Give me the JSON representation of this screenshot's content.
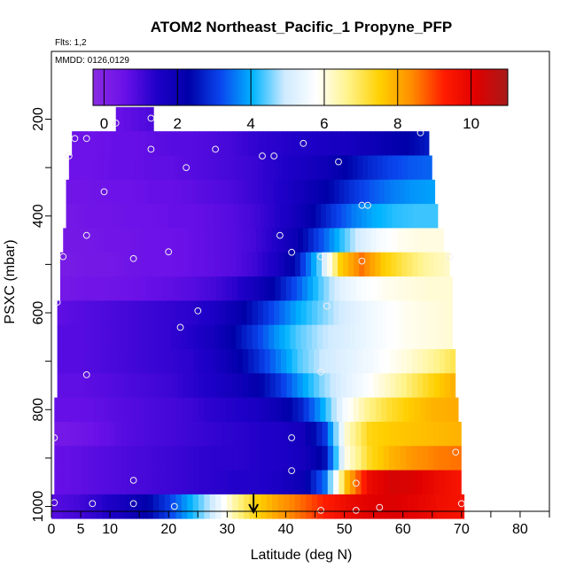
{
  "chart_data": {
    "type": "heatmap",
    "title": "ATOM2 Northeast_Pacific_1 Propyne_PFP",
    "subtitle_flights": "Flts: 1,2",
    "subtitle_dates": "MMDD: 0126,0129",
    "xlabel": "Latitude (deg N)",
    "ylabel": "PSXC (mbar)",
    "xlim": [
      0,
      85
    ],
    "ylim": [
      1010,
      60
    ],
    "x_ticks": [
      0,
      5,
      10,
      20,
      30,
      40,
      50,
      60,
      70,
      80
    ],
    "x_minor_ticks": [
      15,
      25,
      35,
      45,
      55,
      65,
      75,
      85
    ],
    "y_ticks": [
      200,
      400,
      600,
      800,
      1000
    ],
    "y_minor_ticks": [
      300,
      500,
      700,
      900
    ],
    "colorbar": {
      "range": [
        -0.3,
        11
      ],
      "ticks": [
        0,
        2,
        4,
        6,
        8,
        10
      ],
      "gradient": [
        "#8a2be2",
        "#6a10e8",
        "#1f00c8",
        "#0000a8",
        "#0a46ee",
        "#00b4ff",
        "#cfeaff",
        "#ffffff",
        "#fff38a",
        "#ffd000",
        "#ff8c00",
        "#ff1c00",
        "#e00000",
        "#a81a1a"
      ]
    },
    "levels": [
      {
        "p": 200,
        "x0": 11,
        "x1": 17.5,
        "v": [
          0.6,
          0.9
        ]
      },
      {
        "p": 250,
        "x0": 3.5,
        "x1": 64.5,
        "v": [
          0.5,
          0.5,
          0.6,
          0.6,
          0.7,
          0.8,
          0.8,
          0.9,
          1.0,
          1.2,
          1.3,
          1.4,
          1.5,
          1.6,
          1.7,
          1.9,
          2.1,
          2.3,
          2.6
        ]
      },
      {
        "p": 300,
        "x0": 3.0,
        "x1": 65.0,
        "v": [
          0.5,
          0.5,
          0.6,
          0.6,
          0.7,
          0.7,
          0.8,
          0.9,
          1.0,
          1.1,
          1.3,
          1.5,
          1.7,
          2.0,
          2.4,
          2.8,
          3.1,
          3.3,
          3.4
        ]
      },
      {
        "p": 350,
        "x0": 2.5,
        "x1": 65.5,
        "v": [
          0.4,
          0.4,
          0.5,
          0.5,
          0.6,
          0.6,
          0.7,
          0.8,
          0.9,
          1.1,
          1.3,
          1.6,
          2.0,
          2.4,
          2.9,
          3.3,
          3.6,
          3.8,
          3.9
        ]
      },
      {
        "p": 400,
        "x0": 2.5,
        "x1": 66.0,
        "v": [
          0.3,
          0.4,
          0.4,
          0.5,
          0.5,
          0.6,
          0.6,
          0.7,
          0.8,
          1.0,
          1.3,
          1.7,
          2.3,
          3.0,
          3.6,
          4.0,
          4.2,
          4.3,
          4.3
        ]
      },
      {
        "p": 450,
        "x0": 2.0,
        "x1": 67.0,
        "v": [
          0.3,
          0.3,
          0.4,
          0.4,
          0.5,
          0.5,
          0.6,
          0.7,
          0.8,
          1.0,
          1.4,
          2.0,
          3.0,
          4.0,
          5.0,
          5.6,
          5.9,
          6.0,
          6.0
        ]
      },
      {
        "p": 500,
        "x0": 1.5,
        "x1": 68.0,
        "v": [
          0.2,
          0.3,
          0.3,
          0.4,
          0.5,
          0.5,
          0.6,
          0.7,
          0.8,
          1.1,
          1.6,
          2.6,
          4.4,
          7.5,
          8.6,
          7.6,
          7.0,
          6.5,
          6.2
        ]
      },
      {
        "p": 550,
        "x0": 1.5,
        "x1": 68.5,
        "v": [
          0.3,
          0.4,
          0.4,
          0.5,
          0.6,
          0.7,
          0.8,
          1.0,
          1.3,
          1.8,
          2.5,
          3.4,
          4.4,
          5.3,
          5.7,
          5.9,
          6.0,
          6.1,
          6.1
        ]
      },
      {
        "p": 600,
        "x0": 1.0,
        "x1": 68.5,
        "v": [
          0.7,
          0.8,
          0.9,
          1.0,
          1.1,
          1.2,
          1.3,
          1.5,
          2.0,
          2.6,
          3.3,
          4.0,
          4.5,
          5.0,
          5.4,
          5.7,
          5.9,
          6.0,
          6.1
        ]
      },
      {
        "p": 650,
        "x0": 1.0,
        "x1": 68.5,
        "v": [
          0.8,
          0.8,
          0.9,
          1.0,
          1.1,
          1.2,
          1.4,
          1.7,
          2.3,
          3.0,
          3.8,
          4.4,
          4.8,
          5.1,
          5.4,
          5.7,
          5.9,
          6.0,
          6.1
        ]
      },
      {
        "p": 700,
        "x0": 1.0,
        "x1": 69.0,
        "v": [
          0.8,
          0.8,
          0.9,
          1.0,
          1.1,
          1.2,
          1.3,
          1.6,
          2.1,
          2.8,
          3.6,
          4.4,
          4.9,
          5.2,
          5.5,
          5.8,
          6.1,
          6.5,
          7.0
        ]
      },
      {
        "p": 750,
        "x0": 1.0,
        "x1": 69.0,
        "v": [
          0.7,
          0.7,
          0.8,
          0.9,
          1.0,
          1.1,
          1.3,
          1.5,
          1.8,
          2.2,
          2.9,
          3.8,
          4.6,
          5.2,
          5.7,
          6.2,
          6.8,
          7.4,
          7.9
        ]
      },
      {
        "p": 800,
        "x0": 0.5,
        "x1": 69.5,
        "v": [
          0.6,
          0.6,
          0.7,
          0.8,
          0.9,
          1.0,
          1.1,
          1.3,
          1.4,
          1.6,
          2.0,
          2.7,
          4.0,
          5.6,
          6.6,
          7.2,
          7.6,
          7.9,
          8.0
        ]
      },
      {
        "p": 850,
        "x0": 0.5,
        "x1": 70.0,
        "v": [
          0.3,
          0.4,
          0.6,
          0.8,
          0.9,
          1.0,
          1.1,
          1.2,
          1.3,
          1.4,
          1.5,
          1.8,
          3.0,
          6.2,
          7.4,
          7.6,
          7.7,
          7.8,
          7.9
        ]
      },
      {
        "p": 900,
        "x0": 0.5,
        "x1": 70.0,
        "v": [
          0.6,
          0.7,
          0.8,
          0.9,
          1.0,
          1.1,
          1.2,
          1.3,
          1.3,
          1.4,
          1.5,
          1.7,
          2.5,
          6.0,
          7.3,
          7.9,
          8.3,
          8.5,
          8.6
        ]
      },
      {
        "p": 950,
        "x0": 0.5,
        "x1": 70.0,
        "v": [
          0.6,
          0.7,
          0.8,
          0.9,
          1.0,
          1.1,
          1.2,
          1.3,
          1.4,
          1.4,
          1.6,
          2.0,
          3.5,
          7.8,
          9.8,
          10.3,
          10.2,
          9.8,
          9.5
        ]
      },
      {
        "p": 1000,
        "x0": 0.0,
        "x1": 70.5,
        "v": [
          0.8,
          1.0,
          1.3,
          1.7,
          2.2,
          3.0,
          4.0,
          5.0,
          6.5,
          7.5,
          8.2,
          8.7,
          9.3,
          9.8,
          10.1,
          10.2,
          10.0,
          9.7,
          9.5
        ]
      }
    ],
    "samples": [
      [
        11,
        208
      ],
      [
        17,
        198
      ],
      [
        4,
        240
      ],
      [
        6,
        240
      ],
      [
        3,
        276
      ],
      [
        17,
        262
      ],
      [
        23,
        300
      ],
      [
        28,
        262
      ],
      [
        36,
        276
      ],
      [
        38,
        276
      ],
      [
        43,
        250
      ],
      [
        49,
        288
      ],
      [
        63,
        228
      ],
      [
        9,
        350
      ],
      [
        53,
        378
      ],
      [
        54,
        378
      ],
      [
        6,
        440
      ],
      [
        39,
        440
      ],
      [
        41,
        475
      ],
      [
        2,
        484
      ],
      [
        14,
        488
      ],
      [
        20,
        474
      ],
      [
        46,
        484
      ],
      [
        53,
        493
      ],
      [
        68,
        484
      ],
      [
        1,
        578
      ],
      [
        25,
        596
      ],
      [
        47,
        586
      ],
      [
        22,
        630
      ],
      [
        6,
        728
      ],
      [
        46,
        722
      ],
      [
        41,
        858
      ],
      [
        0.5,
        858
      ],
      [
        69,
        888
      ],
      [
        41,
        926
      ],
      [
        14,
        946
      ],
      [
        52,
        952
      ],
      [
        0.5,
        992
      ],
      [
        7,
        994
      ],
      [
        14,
        994
      ],
      [
        21,
        1000
      ],
      [
        46,
        1008
      ],
      [
        52,
        1008
      ],
      [
        56,
        1002
      ],
      [
        70,
        994
      ]
    ],
    "arrow_latitude": 34.5
  }
}
